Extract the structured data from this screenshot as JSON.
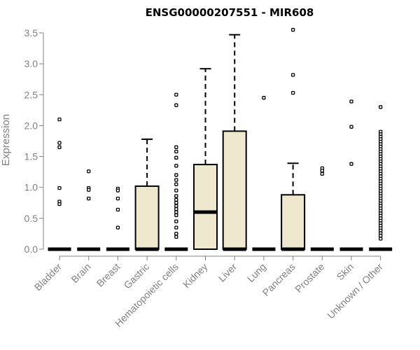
{
  "chart_data": {
    "type": "boxplot",
    "title": "ENSG00000207551 - MIR608",
    "xlabel": "",
    "ylabel": "Expression",
    "ylim": [
      0,
      3.5
    ],
    "yticks": [
      "0.0",
      "0.5",
      "1.0",
      "1.5",
      "2.0",
      "2.5",
      "3.0",
      "3.5"
    ],
    "grid": false,
    "colors": {
      "box_fill": "#eee8cf",
      "axis": "#808080"
    },
    "categories": [
      "Bladder",
      "Brain",
      "Breast",
      "Gastric",
      "Hematopoietic cells",
      "Kidney",
      "Liver",
      "Lung",
      "Pancreas",
      "Prostate",
      "Skin",
      "Unknown / Other"
    ],
    "boxes": [
      {
        "q1": 0,
        "median": 0,
        "q3": 0,
        "whisker_low": 0,
        "whisker_high": 0,
        "outliers": [
          2.1,
          1.72,
          1.65,
          0.99,
          0.77,
          0.73
        ]
      },
      {
        "q1": 0,
        "median": 0,
        "q3": 0,
        "whisker_low": 0,
        "whisker_high": 0,
        "outliers": [
          1.26,
          0.99,
          0.96,
          0.82
        ]
      },
      {
        "q1": 0,
        "median": 0,
        "q3": 0,
        "whisker_low": 0,
        "whisker_high": 0,
        "outliers": [
          0.98,
          0.95,
          0.82,
          0.64,
          0.35
        ]
      },
      {
        "q1": 0,
        "median": 0,
        "q3": 1.02,
        "whisker_low": 0,
        "whisker_high": 1.78,
        "outliers": []
      },
      {
        "q1": 0,
        "median": 0,
        "q3": 0,
        "whisker_low": 0,
        "whisker_high": 0,
        "outliers": [
          2.5,
          2.33,
          1.65,
          1.58,
          1.48,
          1.35,
          1.2,
          1.12,
          1.05,
          0.95,
          0.86,
          0.8,
          0.75,
          0.7,
          0.65,
          0.6,
          0.55,
          0.45,
          0.35,
          0.25,
          0.2
        ]
      },
      {
        "q1": 0,
        "median": 0.6,
        "q3": 1.37,
        "whisker_low": 0,
        "whisker_high": 2.92,
        "outliers": []
      },
      {
        "q1": 0,
        "median": 0,
        "q3": 1.91,
        "whisker_low": 0,
        "whisker_high": 3.47,
        "outliers": []
      },
      {
        "q1": 0,
        "median": 0,
        "q3": 0,
        "whisker_low": 0,
        "whisker_high": 0,
        "outliers": [
          2.45
        ]
      },
      {
        "q1": 0,
        "median": 0,
        "q3": 0.88,
        "whisker_low": 0,
        "whisker_high": 1.39,
        "outliers": [
          3.55,
          2.82,
          2.53
        ]
      },
      {
        "q1": 0,
        "median": 0,
        "q3": 0,
        "whisker_low": 0,
        "whisker_high": 0,
        "outliers": [
          1.31,
          1.27,
          1.22
        ]
      },
      {
        "q1": 0,
        "median": 0,
        "q3": 0,
        "whisker_low": 0,
        "whisker_high": 0,
        "outliers": [
          2.39,
          1.98,
          1.38
        ]
      },
      {
        "q1": 0,
        "median": 0,
        "q3": 0,
        "whisker_low": 0,
        "whisker_high": 0,
        "outliers": [
          2.3,
          1.9,
          1.86,
          1.82,
          1.78,
          1.74,
          1.7,
          1.66,
          1.62,
          1.58,
          1.54,
          1.5,
          1.46,
          1.42,
          1.38,
          1.34,
          1.3,
          1.26,
          1.22,
          1.18,
          1.14,
          1.1,
          1.06,
          1.02,
          0.98,
          0.94,
          0.9,
          0.86,
          0.82,
          0.78,
          0.74,
          0.7,
          0.66,
          0.62,
          0.58,
          0.54,
          0.5,
          0.46,
          0.42,
          0.38,
          0.34,
          0.3,
          0.26,
          0.22,
          0.17
        ]
      }
    ]
  }
}
